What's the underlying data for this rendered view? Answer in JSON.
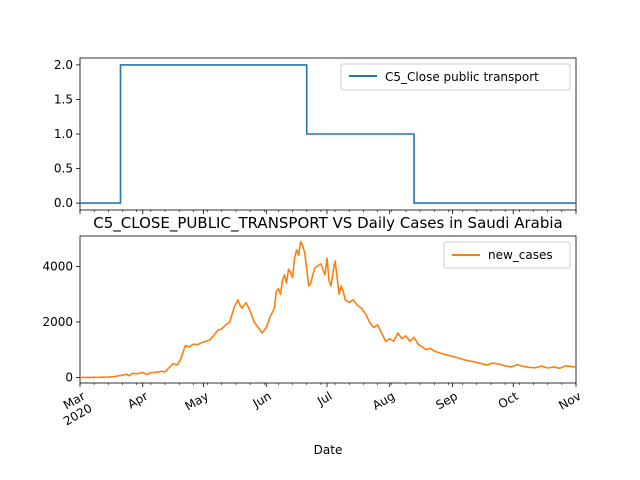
{
  "chart_data": [
    {
      "type": "line",
      "title": "",
      "xlabel": "",
      "ylabel": "",
      "ylim": [
        -0.1,
        2.1
      ],
      "yticks": [
        "0.0",
        "0.5",
        "1.0",
        "1.5",
        "2.0"
      ],
      "yticks_values": [
        0.0,
        0.5,
        1.0,
        1.5,
        2.0
      ],
      "legend_position": "top-right",
      "grid": false,
      "series": [
        {
          "name": "C5_Close public transport",
          "color": "#1f77b4",
          "x": [
            "2020-03-01",
            "2020-03-21",
            "2020-03-21",
            "2020-06-21",
            "2020-06-21",
            "2020-08-13",
            "2020-08-13",
            "2020-11-01"
          ],
          "values": [
            0,
            0,
            2,
            2,
            1,
            1,
            0,
            0
          ]
        }
      ]
    },
    {
      "type": "line",
      "title": "C5_CLOSE_PUBLIC_TRANSPORT VS Daily Cases in Saudi Arabia",
      "xlabel": "Date",
      "ylabel": "",
      "ylim": [
        -200,
        5100
      ],
      "yticks": [
        "0",
        "2000",
        "4000"
      ],
      "yticks_values": [
        0,
        2000,
        4000
      ],
      "xticks": [
        "Mar\n2020",
        "Apr",
        "May",
        "Jun",
        "Jul",
        "Aug",
        "Sep",
        "Oct",
        "Nov"
      ],
      "xticks_dates": [
        "2020-03-01",
        "2020-04-01",
        "2020-05-01",
        "2020-06-01",
        "2020-07-01",
        "2020-08-01",
        "2020-09-01",
        "2020-10-01",
        "2020-11-01"
      ],
      "legend_position": "top-right",
      "grid": false,
      "series": [
        {
          "name": "new_cases",
          "color": "#ff7f0e",
          "x": [
            "2020-03-01",
            "2020-03-05",
            "2020-03-10",
            "2020-03-15",
            "2020-03-18",
            "2020-03-20",
            "2020-03-22",
            "2020-03-24",
            "2020-03-25",
            "2020-03-27",
            "2020-03-29",
            "2020-04-01",
            "2020-04-03",
            "2020-04-05",
            "2020-04-08",
            "2020-04-10",
            "2020-04-12",
            "2020-04-14",
            "2020-04-16",
            "2020-04-18",
            "2020-04-20",
            "2020-04-22",
            "2020-04-24",
            "2020-04-26",
            "2020-04-28",
            "2020-04-30",
            "2020-05-02",
            "2020-05-04",
            "2020-05-06",
            "2020-05-08",
            "2020-05-10",
            "2020-05-12",
            "2020-05-14",
            "2020-05-16",
            "2020-05-18",
            "2020-05-19",
            "2020-05-20",
            "2020-05-22",
            "2020-05-24",
            "2020-05-26",
            "2020-05-28",
            "2020-05-30",
            "2020-06-01",
            "2020-06-03",
            "2020-06-05",
            "2020-06-06",
            "2020-06-07",
            "2020-06-08",
            "2020-06-09",
            "2020-06-10",
            "2020-06-11",
            "2020-06-12",
            "2020-06-13",
            "2020-06-14",
            "2020-06-15",
            "2020-06-16",
            "2020-06-17",
            "2020-06-18",
            "2020-06-19",
            "2020-06-20",
            "2020-06-21",
            "2020-06-22",
            "2020-06-23",
            "2020-06-24",
            "2020-06-25",
            "2020-06-26",
            "2020-06-28",
            "2020-06-30",
            "2020-07-01",
            "2020-07-02",
            "2020-07-03",
            "2020-07-04",
            "2020-07-05",
            "2020-07-06",
            "2020-07-07",
            "2020-07-08",
            "2020-07-09",
            "2020-07-10",
            "2020-07-12",
            "2020-07-14",
            "2020-07-16",
            "2020-07-18",
            "2020-07-20",
            "2020-07-22",
            "2020-07-24",
            "2020-07-26",
            "2020-07-28",
            "2020-07-30",
            "2020-08-01",
            "2020-08-03",
            "2020-08-05",
            "2020-08-07",
            "2020-08-09",
            "2020-08-11",
            "2020-08-13",
            "2020-08-15",
            "2020-08-17",
            "2020-08-19",
            "2020-08-21",
            "2020-08-23",
            "2020-08-25",
            "2020-08-27",
            "2020-08-29",
            "2020-08-31",
            "2020-09-03",
            "2020-09-06",
            "2020-09-09",
            "2020-09-12",
            "2020-09-15",
            "2020-09-18",
            "2020-09-21",
            "2020-09-24",
            "2020-09-27",
            "2020-09-30",
            "2020-10-03",
            "2020-10-06",
            "2020-10-09",
            "2020-10-12",
            "2020-10-15",
            "2020-10-18",
            "2020-10-21",
            "2020-10-24",
            "2020-10-27",
            "2020-10-30",
            "2020-11-01"
          ],
          "values": [
            0,
            0,
            5,
            15,
            30,
            60,
            80,
            120,
            60,
            150,
            130,
            180,
            110,
            170,
            190,
            220,
            200,
            350,
            500,
            450,
            700,
            1150,
            1100,
            1200,
            1180,
            1250,
            1300,
            1350,
            1500,
            1700,
            1750,
            1900,
            2000,
            2500,
            2800,
            2600,
            2500,
            2700,
            2400,
            2000,
            1800,
            1600,
            1800,
            2200,
            2500,
            3100,
            3200,
            3000,
            3500,
            3700,
            3400,
            3900,
            3800,
            3600,
            4300,
            4600,
            4400,
            4900,
            4750,
            4500,
            3900,
            3300,
            3400,
            3700,
            3950,
            4000,
            4100,
            3700,
            4300,
            3500,
            3300,
            3800,
            4200,
            3600,
            3000,
            3300,
            3100,
            2800,
            2700,
            2800,
            2600,
            2500,
            2300,
            2000,
            1800,
            1900,
            1600,
            1300,
            1400,
            1300,
            1600,
            1400,
            1500,
            1300,
            1450,
            1200,
            1100,
            1000,
            1050,
            950,
            900,
            850,
            820,
            780,
            720,
            650,
            600,
            560,
            500,
            450,
            520,
            480,
            420,
            380,
            460,
            400,
            360,
            350,
            410,
            340,
            380,
            330,
            420,
            390,
            380
          ]
        }
      ]
    }
  ]
}
